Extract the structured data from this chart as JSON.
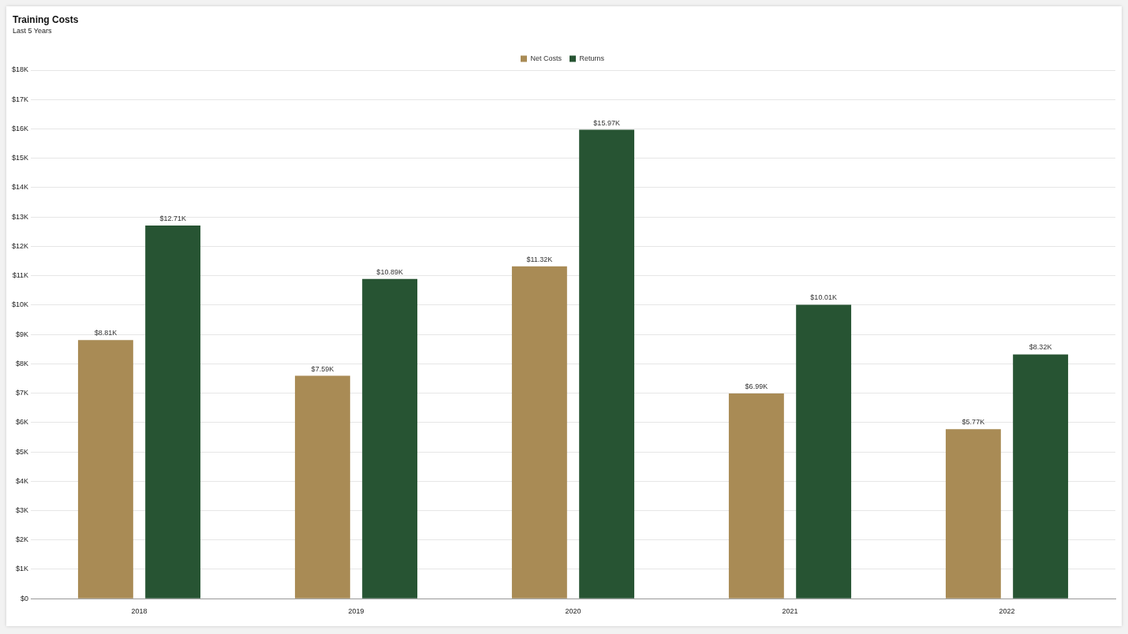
{
  "chart_data": {
    "type": "bar",
    "title": "Training Costs",
    "subtitle": "Last 5 Years",
    "categories": [
      "2018",
      "2019",
      "2020",
      "2021",
      "2022"
    ],
    "series": [
      {
        "name": "Net Costs",
        "color": "#a98b55",
        "values": [
          8810,
          7590,
          11320,
          6990,
          5770
        ],
        "value_labels": [
          "$8.81K",
          "$7.59K",
          "$11.32K",
          "$6.99K",
          "$5.77K"
        ]
      },
      {
        "name": "Returns",
        "color": "#275433",
        "values": [
          12710,
          10890,
          15970,
          10010,
          8320
        ],
        "value_labels": [
          "$12.71K",
          "$10.89K",
          "$15.97K",
          "$10.01K",
          "$8.32K"
        ]
      }
    ],
    "ylim": [
      0,
      18000
    ],
    "yticks": [
      {
        "value": 0,
        "label": "$0"
      },
      {
        "value": 1000,
        "label": "$1K"
      },
      {
        "value": 2000,
        "label": "$2K"
      },
      {
        "value": 3000,
        "label": "$3K"
      },
      {
        "value": 4000,
        "label": "$4K"
      },
      {
        "value": 5000,
        "label": "$5K"
      },
      {
        "value": 6000,
        "label": "$6K"
      },
      {
        "value": 7000,
        "label": "$7K"
      },
      {
        "value": 8000,
        "label": "$8K"
      },
      {
        "value": 9000,
        "label": "$9K"
      },
      {
        "value": 10000,
        "label": "$10K"
      },
      {
        "value": 11000,
        "label": "$11K"
      },
      {
        "value": 12000,
        "label": "$12K"
      },
      {
        "value": 13000,
        "label": "$13K"
      },
      {
        "value": 14000,
        "label": "$14K"
      },
      {
        "value": 15000,
        "label": "$15K"
      },
      {
        "value": 16000,
        "label": "$16K"
      },
      {
        "value": 17000,
        "label": "$17K"
      },
      {
        "value": 18000,
        "label": "$18K"
      }
    ],
    "grid": "y",
    "legend": "top"
  }
}
